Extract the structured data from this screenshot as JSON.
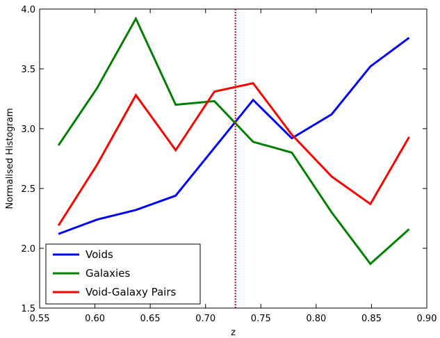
{
  "chart_data": {
    "type": "line",
    "xlabel": "z",
    "ylabel": "Normalised Histogram",
    "xlim": [
      0.55,
      0.9
    ],
    "ylim": [
      1.5,
      4.0
    ],
    "xticks": [
      "0.55",
      "0.60",
      "0.65",
      "0.70",
      "0.75",
      "0.80",
      "0.85",
      "0.90"
    ],
    "yticks": [
      "1.5",
      "2.0",
      "2.5",
      "3.0",
      "3.5",
      "4.0"
    ],
    "x": [
      0.567,
      0.602,
      0.637,
      0.673,
      0.708,
      0.743,
      0.778,
      0.814,
      0.849,
      0.884
    ],
    "series": [
      {
        "name": "Voids",
        "color": "#0000ff",
        "values": [
          2.12,
          2.24,
          2.32,
          2.44,
          2.84,
          3.24,
          2.92,
          3.12,
          3.52,
          3.76
        ]
      },
      {
        "name": "Galaxies",
        "color": "#008000",
        "values": [
          2.86,
          3.34,
          3.92,
          3.2,
          3.23,
          2.89,
          2.8,
          2.3,
          1.87,
          2.16
        ]
      },
      {
        "name": "Void-Galaxy Pairs",
        "color": "#ff0000",
        "values": [
          2.19,
          2.7,
          3.28,
          2.82,
          3.31,
          3.38,
          2.95,
          2.6,
          2.37,
          2.93
        ]
      }
    ],
    "vline": {
      "x": 0.727,
      "color": "#ff0000",
      "style": "dotted"
    },
    "legend_position": "bottom-left",
    "grid": false
  }
}
